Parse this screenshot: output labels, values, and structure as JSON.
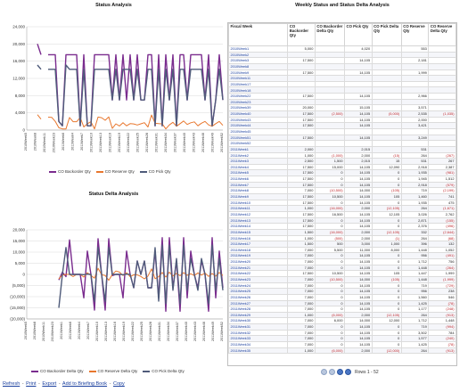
{
  "panels": {
    "status_title": "Status Analysis",
    "weekly_title": "Weekly Status and Status Delta Analysis",
    "delta_title": "Status Delta Analysis"
  },
  "colors": {
    "backorder": "#7a2c8e",
    "reserve": "#e8772e",
    "pick": "#4f5b7a"
  },
  "chart_data": [
    {
      "type": "line",
      "title": "Status Analysis",
      "ylim": [
        0,
        24000
      ],
      "yticks": [
        "24,000",
        "20,000",
        "16,000",
        "12,000",
        "8,000",
        "4,000",
        "0"
      ],
      "xticks": [
        "2010Week5",
        "2010Week8",
        "2010Week11",
        "2010Week23",
        "2011Week6",
        "2011Week4",
        "2011Week7",
        "2011Week10",
        "2011Week13",
        "2011Week16",
        "2011Week19",
        "2011Week22",
        "2011Week25",
        "2011Week28",
        "2011Week31",
        "2011Week34",
        "2011Week37",
        "2011Week40",
        "2011Week43",
        "2011Week46",
        "2011Week49",
        "2011Week52"
      ],
      "legend": [
        "CO Backorder Qty",
        "CO Reserve Qty",
        "CO Pick Qty"
      ],
      "series": [
        {
          "name": "CO Backorder Qty",
          "values": [
            null,
            null,
            null,
            20000,
            17500,
            null,
            17500,
            17500,
            17500,
            2000,
            1000,
            17500,
            17500,
            17500,
            17500,
            1000,
            17500,
            1000,
            1000,
            17500,
            17500,
            17500,
            17500,
            17500,
            7000,
            17500,
            7000,
            17500,
            7000,
            17500,
            7000,
            17500,
            7000,
            7000,
            17500,
            17500,
            1000,
            17500,
            1000,
            17500,
            7000,
            17500,
            1000,
            17500,
            17500,
            7000,
            17500,
            17500,
            17500,
            17500,
            7000,
            17500,
            1000,
            7000,
            17500,
            7000
          ]
        },
        {
          "name": "CO Reserve Qty",
          "values": [
            null,
            null,
            null,
            3571,
            2535,
            null,
            3000,
            2966,
            1999,
            531,
            264,
            267,
            2918,
            1935,
            1945,
            2918,
            719,
            1460,
            1935,
            264,
            3026,
            2871,
            2276,
            3071,
            396,
            1448,
            956,
            1712,
            1000,
            1500,
            1425,
            1177,
            1448,
            1712,
            719,
            3502,
            1577,
            1493,
            1425,
            264,
            1200,
            1800,
            900,
            1500,
            2100,
            1300,
            1700,
            1900,
            1000,
            1600,
            2000,
            1200,
            900,
            1500,
            2000,
            1100
          ]
        },
        {
          "name": "CO Pick Qty",
          "values": [
            null,
            null,
            null,
            15105,
            14105,
            null,
            14105,
            14105,
            14105,
            2015,
            1000,
            15105,
            14105,
            14105,
            14105,
            1000,
            14105,
            1000,
            1000,
            14105,
            14105,
            14105,
            14105,
            14105,
            7000,
            14105,
            7000,
            14105,
            14105,
            14105,
            7000,
            14105,
            7000,
            7000,
            14105,
            14105,
            1000,
            14105,
            1000,
            14105,
            7000,
            14105,
            1000,
            14105,
            14105,
            7000,
            14105,
            14105,
            14105,
            14105,
            7000,
            14105,
            1000,
            7000,
            14105,
            7000
          ]
        }
      ]
    },
    {
      "type": "line",
      "title": "Status Delta Analysis",
      "ylim": [
        -20000,
        20000
      ],
      "yticks": [
        "20,000",
        "15,000",
        "10,000",
        "5,000",
        "0",
        "(5,000)",
        "(10,000)",
        "(15,000)",
        "(20,000)"
      ],
      "xticks": [
        "2010Week5",
        "2010Week8",
        "2010Week11",
        "2010Week23",
        "2011Week1",
        "2011Week6",
        "2011Week4",
        "2011Week7",
        "2011Week10",
        "2011Week13",
        "2011Week16",
        "2011Week19",
        "2011Week22",
        "2011Week25",
        "2011Week28",
        "2011Week31",
        "2011Week34",
        "2011Week37",
        "2011Week40",
        "2011Week43",
        "2011Week46",
        "2011Week49",
        "2011Week52"
      ],
      "legend": [
        "CO Backorder Delta Qty",
        "CO Reserve Delta Qty",
        "CO Pick Delta Qty"
      ],
      "series": [
        {
          "name": "CO Backorder Delta Qty",
          "values": [
            null,
            null,
            null,
            null,
            null,
            null,
            0,
            null,
            null,
            -2500,
            1000,
            -1000,
            15500,
            0,
            0,
            0,
            -10500,
            10500,
            0,
            -16000,
            16000,
            0,
            -16000,
            16000,
            -500,
            0,
            0,
            -10500,
            10500,
            0,
            -6000,
            6000,
            0,
            6000,
            -6000,
            -6000,
            10500,
            -10500,
            16500,
            -16500,
            16500,
            -6000,
            6000,
            -16500,
            16500,
            -10500,
            10500,
            0,
            -6000,
            6000,
            0,
            -16500,
            16500,
            -10500,
            10500,
            -6000
          ]
        },
        {
          "name": "CO Reserve Delta Qty",
          "values": [
            null,
            null,
            null,
            null,
            null,
            null,
            -1035,
            null,
            null,
            -2000,
            -267,
            0,
            0,
            -981,
            0,
            0,
            -1199,
            741,
            -475,
            -1671,
            2762,
            -155,
            -496,
            -2644,
            -68,
            1512,
            1052,
            -491,
            756,
            -1000,
            -207,
            -248,
            -913,
            -1999,
            -729,
            2500,
            -1920,
            -1000,
            900,
            -1200,
            1000,
            -700,
            500,
            -600,
            800,
            -400,
            300,
            -500,
            700,
            -300,
            600,
            -900,
            400,
            -800,
            900,
            -500
          ]
        },
        {
          "name": "CO Pick Delta Qty",
          "values": [
            null,
            null,
            null,
            null,
            null,
            null,
            -5000,
            null,
            null,
            -15000,
            -15,
            12090,
            0,
            0,
            0,
            0,
            -105,
            105,
            0,
            -12105,
            12105,
            0,
            -12105,
            12105,
            -1,
            0,
            0,
            -105,
            105,
            0,
            -6000,
            6000,
            0,
            6000,
            -6000,
            -6000,
            12000,
            -12000,
            13105,
            -13105,
            13105,
            -7105,
            7105,
            -13105,
            13105,
            -7105,
            7105,
            0,
            -7105,
            7105,
            0,
            -13105,
            13105,
            -7105,
            7105,
            -7105
          ]
        }
      ]
    }
  ],
  "table": {
    "headers": [
      "Fiscal Week",
      "CO Backorder Qty",
      "CO Backorder Delta Qty",
      "CO Pick Qty",
      "CO Pick Delta Qty",
      "CO Reserve Qty",
      "CO Reserve Delta Qty"
    ],
    "rows": [
      [
        "2010Week1",
        "5,000",
        "",
        "4,020",
        "",
        "553",
        ""
      ],
      [
        "2010Week2",
        "",
        "",
        "",
        "",
        "",
        ""
      ],
      [
        "2010Week3",
        "17,500",
        "",
        "14,105",
        "",
        "2,181",
        ""
      ],
      [
        "2010Week8",
        "",
        "",
        "",
        "",
        "",
        ""
      ],
      [
        "2010Week9",
        "17,500",
        "",
        "14,105",
        "",
        "1,999",
        ""
      ],
      [
        "2010Week11",
        "",
        "",
        "",
        "",
        "",
        ""
      ],
      [
        "2010Week17",
        "",
        "",
        "",
        "",
        "",
        ""
      ],
      [
        "2010Week18",
        "",
        "",
        "",
        "",
        "",
        ""
      ],
      [
        "2010Week22",
        "17,500",
        "",
        "14,105",
        "",
        "2,966",
        ""
      ],
      [
        "2010Week23",
        "",
        "",
        "",
        "",
        "",
        ""
      ],
      [
        "2010Week39",
        "20,000",
        "",
        "15,105",
        "",
        "3,571",
        ""
      ],
      [
        "2010Week40",
        "17,500",
        "(2,500)",
        "14,105",
        "(5,000)",
        "2,535",
        "(1,035)"
      ],
      [
        "2010Week43",
        "17,500",
        "",
        "14,105",
        "",
        "2,000",
        ""
      ],
      [
        "2010Week44",
        "17,500",
        "",
        "14,105",
        "",
        "3,421",
        ""
      ],
      [
        "2010Week45",
        "",
        "",
        "",
        "",
        "",
        ""
      ],
      [
        "2010Week51",
        "17,500",
        "",
        "14,105",
        "",
        "3,249",
        ""
      ],
      [
        "2010Week52",
        "",
        "",
        "",
        "",
        "",
        ""
      ],
      [
        "2011Week1",
        "2,000",
        "",
        "2,015",
        "",
        "531",
        ""
      ],
      [
        "2011Week2",
        "1,000",
        "(1,000)",
        "2,000",
        "(15)",
        "264",
        "(267)"
      ],
      [
        "2011Week3",
        "2,500",
        "1,500",
        "2,015",
        "15",
        "531",
        "267"
      ],
      [
        "2011Week4",
        "17,500",
        "15,000",
        "14,105",
        "12,090",
        "2,918",
        "2,387"
      ],
      [
        "2011Week5",
        "17,500",
        "0",
        "14,105",
        "0",
        "1,935",
        "(981)"
      ],
      [
        "2011Week6",
        "17,500",
        "0",
        "14,105",
        "0",
        "1,945",
        "1,512"
      ],
      [
        "2011Week7",
        "17,500",
        "0",
        "14,105",
        "0",
        "2,918",
        "(579)"
      ],
      [
        "2011Week8",
        "7,000",
        "(10,500)",
        "14,000",
        "(105)",
        "719",
        "(2,199)"
      ],
      [
        "2011Week9",
        "17,500",
        "10,500",
        "14,105",
        "105",
        "1,460",
        "741"
      ],
      [
        "2011Week10",
        "17,500",
        "0",
        "14,105",
        "0",
        "1,935",
        "475"
      ],
      [
        "2011Week11",
        "1,000",
        "(16,000)",
        "2,000",
        "(12,105)",
        "264",
        "(1,671)"
      ],
      [
        "2011Week12",
        "17,500",
        "16,500",
        "14,105",
        "12,105",
        "3,026",
        "2,762"
      ],
      [
        "2011Week13",
        "17,500",
        "0",
        "14,105",
        "0",
        "2,871",
        "(155)"
      ],
      [
        "2011Week14",
        "17,500",
        "0",
        "14,105",
        "0",
        "2,376",
        "(496)"
      ],
      [
        "2011Week15",
        "1,500",
        "(16,000)",
        "2,000",
        "(12,105)",
        "332",
        "(2,644)"
      ],
      [
        "2011Week16",
        "1,000",
        "(500)",
        "2,000",
        "(1)",
        "264",
        "(68)"
      ],
      [
        "2011Week17",
        "1,500",
        "500",
        "3,000",
        "1,000",
        "396",
        "132"
      ],
      [
        "2011Week18",
        "7,000",
        "5,500",
        "11,000",
        "8,000",
        "1,448",
        "1,052"
      ],
      [
        "2011Week19",
        "7,000",
        "0",
        "14,105",
        "0",
        "956",
        "(491)"
      ],
      [
        "2011Week20",
        "7,000",
        "0",
        "14,105",
        "0",
        "1,712",
        "756"
      ],
      [
        "2011Week21",
        "7,000",
        "0",
        "14,105",
        "0",
        "1,448",
        "(264)"
      ],
      [
        "2011Week22",
        "17,500",
        "10,500",
        "14,105",
        "105",
        "1,447",
        "1,999"
      ],
      [
        "2011Week23",
        "7,000",
        "(10,500)",
        "14,000",
        "(105)",
        "1,448",
        "(1,999)"
      ],
      [
        "2011Week24",
        "7,000",
        "0",
        "14,105",
        "0",
        "719",
        "(729)"
      ],
      [
        "2011Week25",
        "7,000",
        "0",
        "14,105",
        "0",
        "956",
        "238"
      ],
      [
        "2011Week26",
        "7,000",
        "0",
        "14,105",
        "0",
        "1,560",
        "546"
      ],
      [
        "2011Week27",
        "7,000",
        "0",
        "14,105",
        "0",
        "1,425",
        "(78)"
      ],
      [
        "2011Week28",
        "7,000",
        "0",
        "14,105",
        "0",
        "1,177",
        "(248)"
      ],
      [
        "2011Week29",
        "1,000",
        "(6,000)",
        "2,000",
        "(12,105)",
        "264",
        "(913)"
      ],
      [
        "2011Week30",
        "7,000",
        "6,000",
        "14,000",
        "12,000",
        "1,712",
        "1,448"
      ],
      [
        "2011Week31",
        "7,000",
        "0",
        "14,105",
        "0",
        "719",
        "(994)"
      ],
      [
        "2011Week32",
        "7,000",
        "0",
        "14,105",
        "0",
        "3,502",
        "784"
      ],
      [
        "2011Week33",
        "7,000",
        "0",
        "14,105",
        "0",
        "1,577",
        "(240)"
      ],
      [
        "2011Week34",
        "7,000",
        "0",
        "14,105",
        "0",
        "1,425",
        "(78)"
      ],
      [
        "2011Week35",
        "1,000",
        "(6,000)",
        "2,000",
        "(12,000)",
        "264",
        "(913)"
      ]
    ]
  },
  "pager": {
    "label": "Rows 1 - 52"
  },
  "footer": {
    "refresh": "Refresh",
    "print": "Print",
    "export": "Export",
    "briefing": "Add to Briefing Book",
    "copy": "Copy",
    "separator": "-"
  }
}
